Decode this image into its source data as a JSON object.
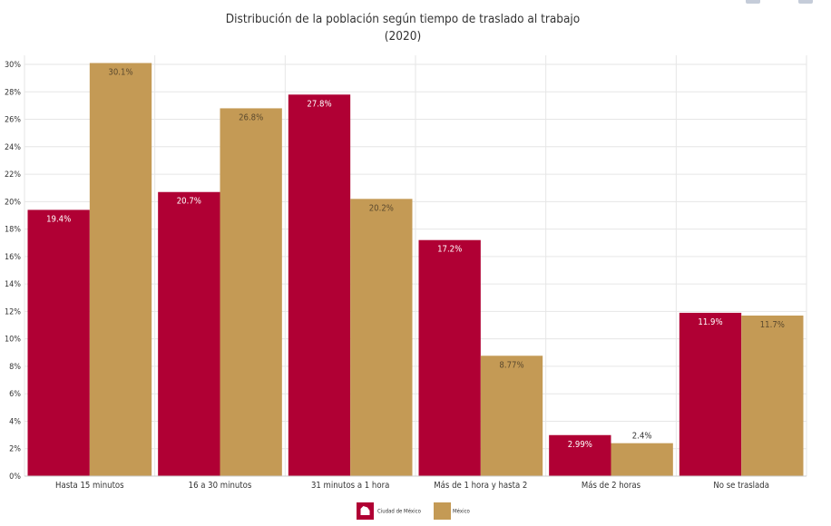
{
  "chart_data": {
    "type": "bar",
    "title": "Distribución de la población según tiempo de traslado al trabajo",
    "subtitle": "(2020)",
    "categories": [
      "Hasta 15 minutos",
      "16 a 30 minutos",
      "31 minutos a 1 hora",
      "Más de 1 hora y hasta 2",
      "Más de 2 horas",
      "No se traslada"
    ],
    "series": [
      {
        "name": "Ciudad de México",
        "color": "#b00034",
        "values": [
          19.4,
          20.7,
          27.8,
          17.2,
          2.99,
          11.9
        ],
        "labels": [
          "19.4%",
          "20.7%",
          "27.8%",
          "17.2%",
          "2.99%",
          "11.9%"
        ]
      },
      {
        "name": "México",
        "color": "#c49a55",
        "values": [
          30.1,
          26.8,
          20.2,
          8.77,
          2.4,
          11.7
        ],
        "labels": [
          "30.1%",
          "26.8%",
          "20.2%",
          "8.77%",
          "2.4%",
          "11.7%"
        ]
      }
    ],
    "ylim": [
      0,
      30
    ],
    "yticks": [
      "0%",
      "2%",
      "4%",
      "6%",
      "8%",
      "10%",
      "12%",
      "14%",
      "16%",
      "18%",
      "20%",
      "22%",
      "24%",
      "26%",
      "28%",
      "30%"
    ],
    "grid": true,
    "legend_position": "bottom-center"
  }
}
